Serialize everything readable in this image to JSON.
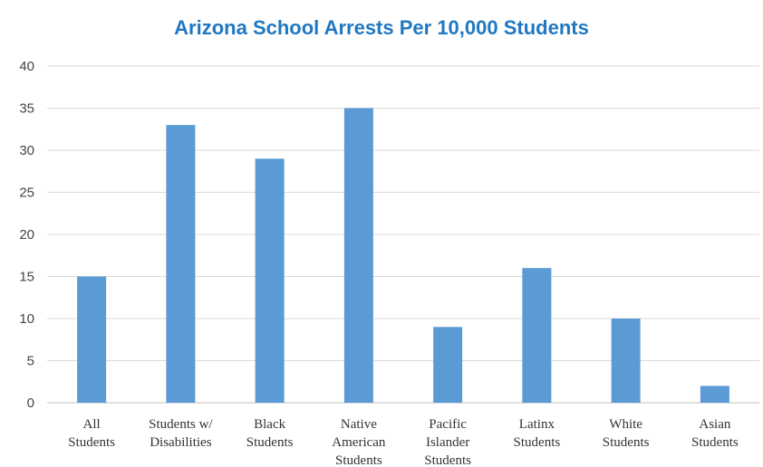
{
  "chart_data": {
    "type": "bar",
    "title": "Arizona School Arrests Per 10,000 Students",
    "xlabel": "",
    "ylabel": "",
    "categories": [
      [
        "All",
        "Students"
      ],
      [
        "Students w/",
        "Disabilities"
      ],
      [
        "Black",
        "Students"
      ],
      [
        "Native",
        "American",
        "Students"
      ],
      [
        "Pacific",
        "Islander",
        "Students"
      ],
      [
        "Latinx",
        "Students"
      ],
      [
        "White",
        "Students"
      ],
      [
        "Asian",
        "Students"
      ]
    ],
    "values": [
      15,
      33,
      29,
      35,
      9,
      16,
      10,
      2
    ],
    "ylim": [
      0,
      40
    ],
    "yticks": [
      0,
      5,
      10,
      15,
      20,
      25,
      30,
      35,
      40
    ],
    "grid": true,
    "bar_color": "#5b9bd5",
    "title_color": "#1f78c1",
    "legend": "none"
  }
}
